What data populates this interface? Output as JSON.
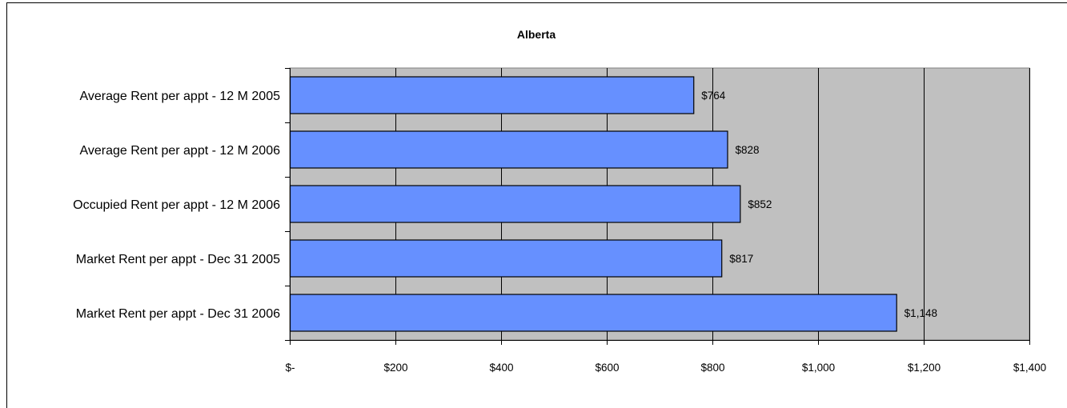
{
  "chart_data": {
    "type": "bar",
    "orientation": "horizontal",
    "title": "Alberta",
    "xlabel": "",
    "ylabel": "",
    "categories": [
      "Average Rent per appt - 12 M 2005",
      "Average Rent per appt - 12 M 2006",
      "Occupied Rent per appt - 12 M 2006",
      "Market Rent per appt - Dec 31 2005",
      "Market Rent per appt - Dec 31 2006"
    ],
    "values": [
      764,
      828,
      852,
      817,
      1148
    ],
    "data_labels": [
      "$764",
      "$828",
      "$852",
      "$817",
      "$1,148"
    ],
    "xlim": [
      0,
      1400
    ],
    "x_ticks": [
      0,
      200,
      400,
      600,
      800,
      1000,
      1200,
      1400
    ],
    "x_tick_labels": [
      "$-",
      "$200",
      "$400",
      "$600",
      "$800",
      "$1,000",
      "$1,200",
      "$1,400"
    ],
    "grid": true,
    "legend": "none",
    "colors": {
      "bar_fill": "#6690ff",
      "bar_stroke": "#000000",
      "plot_background": "#c0c0c0",
      "gridline": "#000000"
    }
  }
}
